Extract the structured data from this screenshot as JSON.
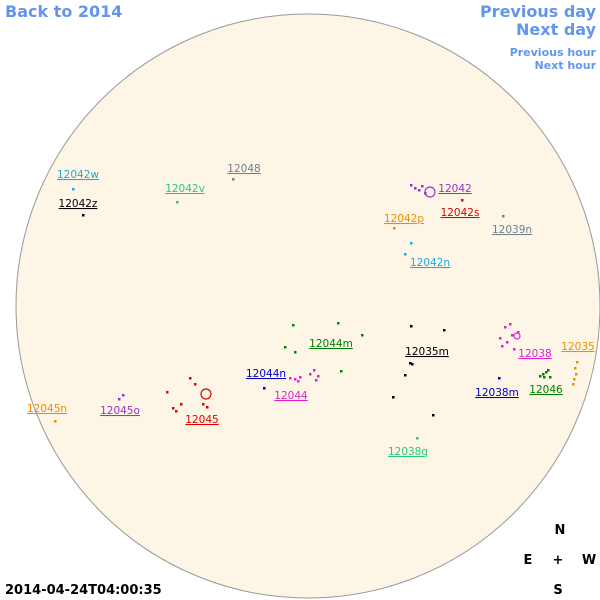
{
  "header": {
    "back": "Back to 2014",
    "previous_day": "Previous day",
    "next_day": "Next day",
    "previous_hour": "Previous hour",
    "next_hour": "Next hour"
  },
  "regions": [
    {
      "label": "12042w",
      "color": "#1eaadc"
    },
    {
      "label": "12042z",
      "color": "#000000"
    },
    {
      "label": "12042v",
      "color": "#22cc77"
    },
    {
      "label": "12048",
      "color": "#708090"
    },
    {
      "label": "12042",
      "color": "#9933cc"
    },
    {
      "label": "12042s",
      "color": "#e00000"
    },
    {
      "label": "12042p",
      "color": "#f08c00"
    },
    {
      "label": "12039n",
      "color": "#708090"
    },
    {
      "label": "12042n",
      "color": "#1eaadc"
    },
    {
      "label": "12044m",
      "color": "#008000"
    },
    {
      "label": "12035m",
      "color": "#000000"
    },
    {
      "label": "12038",
      "color": "#e020d0"
    },
    {
      "label": "12035",
      "color": "#f08c00"
    },
    {
      "label": "12046",
      "color": "#008000"
    },
    {
      "label": "12038m",
      "color": "#0000c0"
    },
    {
      "label": "12044n",
      "color": "#0000c0"
    },
    {
      "label": "12044",
      "color": "#e020d0"
    },
    {
      "label": "12045",
      "color": "#e00000"
    },
    {
      "label": "12045o",
      "color": "#9933cc"
    },
    {
      "label": "12045n",
      "color": "#f08c00"
    },
    {
      "label": "12038q",
      "color": "#22cc77"
    }
  ],
  "timestamp": "2014-04-24T04:00:35",
  "compass": {
    "north": "N",
    "east": "E",
    "center": "+",
    "west": "W",
    "south": "S"
  }
}
